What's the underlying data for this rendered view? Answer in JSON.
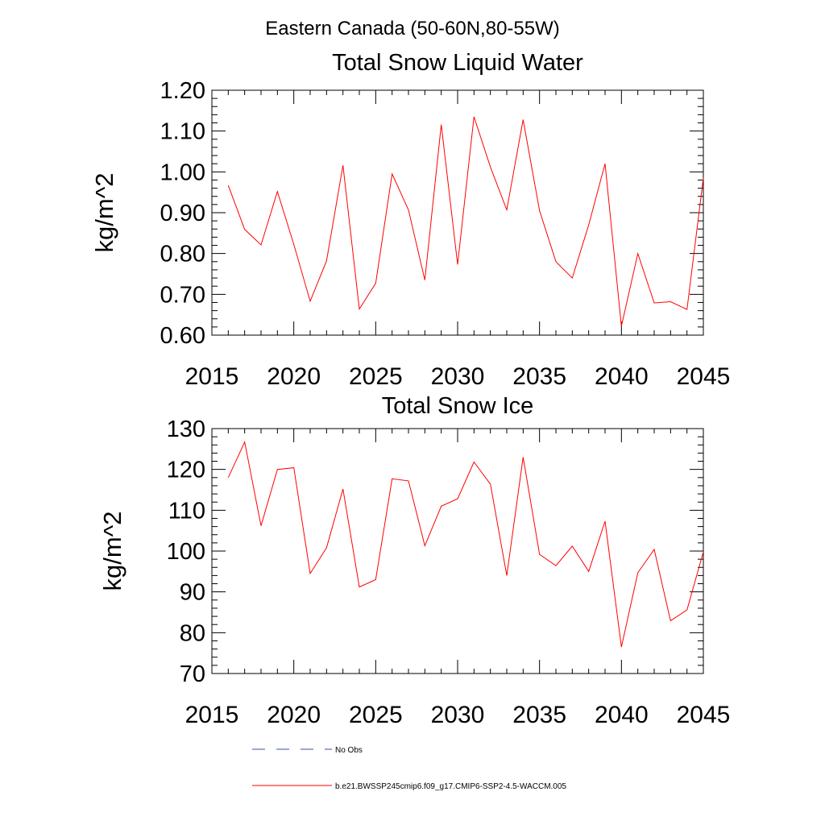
{
  "page": {
    "title": "Eastern Canada (50-60N,80-55W)"
  },
  "legend": {
    "items": [
      {
        "label": "No Obs",
        "color": "#3a4fa0",
        "style": "dashed"
      },
      {
        "label": "b.e21.BWSSP245cmip6.f09_g17.CMIP6-SSP2-4.5-WACCM.005",
        "color": "#ff0000",
        "style": "solid"
      }
    ]
  },
  "chart_data": [
    {
      "type": "line",
      "title": "Total Snow Liquid Water",
      "xlabel": "",
      "ylabel": "kg/m^2",
      "xlim": [
        2015,
        2045
      ],
      "ylim": [
        0.6,
        1.2
      ],
      "xticks": [
        2015,
        2020,
        2025,
        2030,
        2035,
        2040,
        2045
      ],
      "yticks": [
        0.6,
        0.7,
        0.8,
        0.9,
        1.0,
        1.1,
        1.2
      ],
      "ytick_labels": [
        "0.60",
        "0.70",
        "0.80",
        "0.90",
        "1.00",
        "1.10",
        "1.20"
      ],
      "x": [
        2016,
        2017,
        2018,
        2019,
        2020,
        2021,
        2022,
        2023,
        2024,
        2025,
        2026,
        2027,
        2028,
        2029,
        2030,
        2031,
        2032,
        2033,
        2034,
        2035,
        2036,
        2037,
        2038,
        2039,
        2040,
        2041,
        2042,
        2043,
        2044,
        2045
      ],
      "series": [
        {
          "color": "#ff0000",
          "values": [
            0.967,
            0.859,
            0.821,
            0.952,
            0.822,
            0.683,
            0.782,
            1.016,
            0.664,
            0.727,
            0.995,
            0.907,
            0.735,
            1.116,
            0.773,
            1.135,
            1.012,
            0.907,
            1.128,
            0.905,
            0.78,
            0.74,
            0.87,
            1.02,
            0.622,
            0.8,
            0.679,
            0.682,
            0.663,
            0.985
          ]
        }
      ],
      "grid": false
    },
    {
      "type": "line",
      "title": "Total Snow Ice",
      "xlabel": "",
      "ylabel": "kg/m^2",
      "xlim": [
        2015,
        2045
      ],
      "ylim": [
        70,
        130
      ],
      "xticks": [
        2015,
        2020,
        2025,
        2030,
        2035,
        2040,
        2045
      ],
      "yticks": [
        70,
        80,
        90,
        100,
        110,
        120,
        130
      ],
      "ytick_labels": [
        "70",
        "80",
        "90",
        "100",
        "110",
        "120",
        "130"
      ],
      "x": [
        2016,
        2017,
        2018,
        2019,
        2020,
        2021,
        2022,
        2023,
        2024,
        2025,
        2026,
        2027,
        2028,
        2029,
        2030,
        2031,
        2032,
        2033,
        2034,
        2035,
        2036,
        2037,
        2038,
        2039,
        2040,
        2041,
        2042,
        2043,
        2044,
        2045
      ],
      "series": [
        {
          "color": "#ff0000",
          "values": [
            118.0,
            126.7,
            106.2,
            120.0,
            120.4,
            94.5,
            100.8,
            115.2,
            91.2,
            93.0,
            117.7,
            117.2,
            101.3,
            111.0,
            112.8,
            121.8,
            116.4,
            94.0,
            123.0,
            99.2,
            96.4,
            101.2,
            95.0,
            107.3,
            76.5,
            94.7,
            100.4,
            82.9,
            85.6,
            99.8
          ]
        }
      ],
      "grid": false
    }
  ]
}
